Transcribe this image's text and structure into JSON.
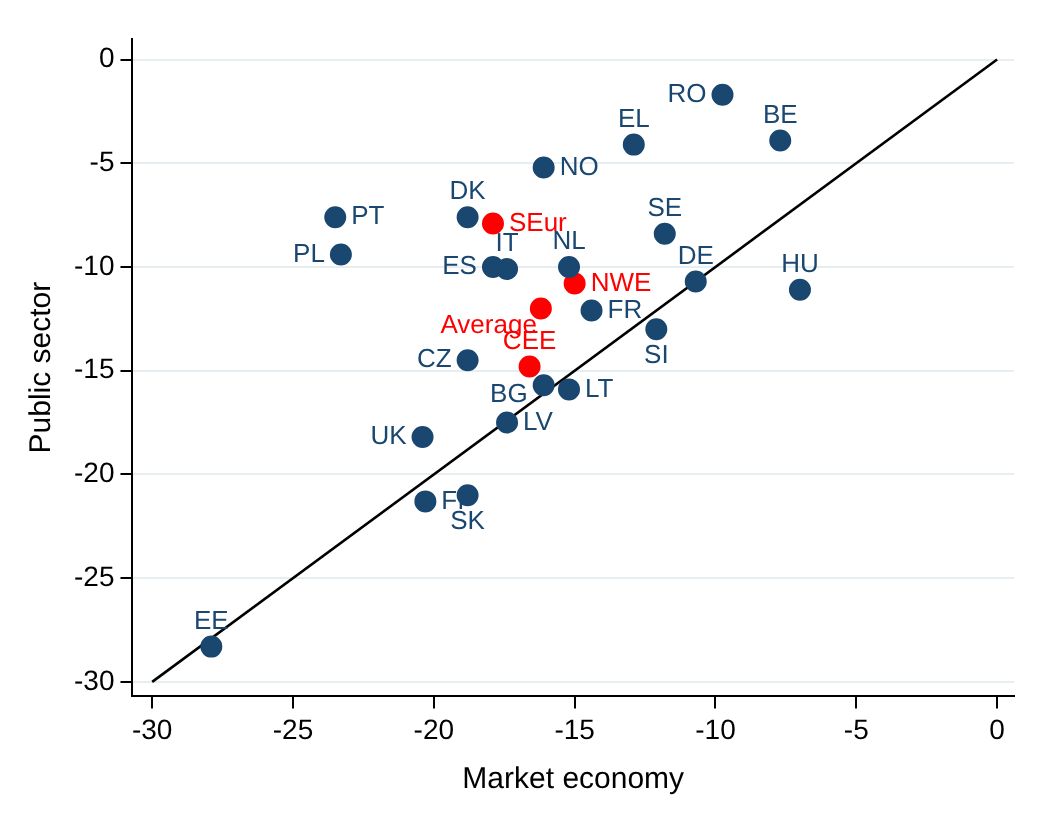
{
  "chart_data": {
    "type": "scatter",
    "xlabel": "Market economy",
    "ylabel": "Public sector",
    "xlim": [
      -30.7,
      0.6
    ],
    "ylim": [
      -30.7,
      1
    ],
    "xticks": [
      -30,
      -25,
      -20,
      -15,
      -10,
      -5,
      0
    ],
    "yticks": [
      -30,
      -25,
      -20,
      -15,
      -10,
      -5,
      0
    ],
    "grid": "y",
    "legend": false,
    "marker": "circle",
    "series": [
      {
        "color": "#1a476f",
        "x": [
          -9.75,
          -7.7,
          -12.9,
          -16.1,
          -23.5,
          -18.8,
          -11.8,
          -23.3,
          -17.9,
          -17.4,
          -15.2,
          -10.7,
          -7.0,
          -14.4,
          -12.1,
          -18.8,
          -16.1,
          -15.2,
          -17.4,
          -20.4,
          -20.3,
          -18.8,
          -27.9
        ],
        "values": [
          -1.7,
          -3.9,
          -4.1,
          -5.2,
          -7.6,
          -7.6,
          -8.4,
          -9.4,
          -10.0,
          -10.1,
          -10.0,
          -10.7,
          -11.1,
          -12.1,
          -13.0,
          -14.5,
          -15.7,
          -15.9,
          -17.5,
          -18.2,
          -21.3,
          -21.0,
          -28.3
        ],
        "value_labels": [
          "RO",
          "BE",
          "EL",
          "NO",
          "PT",
          "DK",
          "SE",
          "PL",
          "ES",
          "IT",
          "NL",
          "DE",
          "HU",
          "FR",
          "SI",
          "CZ",
          "BG",
          "LT",
          "LV",
          "UK",
          "FI",
          "SK",
          "EE"
        ]
      },
      {
        "color": "#ff0000",
        "x": [
          -17.9,
          -15.0,
          -16.2,
          -16.6
        ],
        "values": [
          -7.9,
          -10.8,
          -12.0,
          -14.8
        ],
        "value_labels": [
          "SEur",
          "NWE",
          "Average",
          "CEE"
        ]
      },
      {
        "type": "line",
        "color": "#000000",
        "marker": "none",
        "x": [
          -30,
          0
        ],
        "values": [
          -30,
          0
        ]
      }
    ]
  }
}
